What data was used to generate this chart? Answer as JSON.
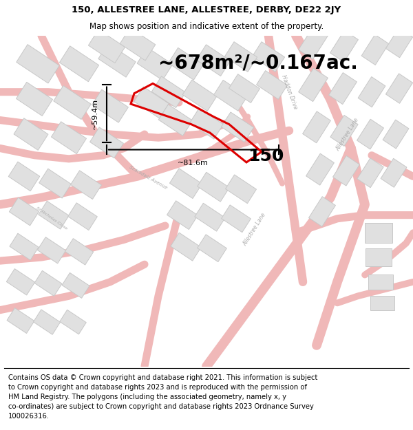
{
  "title_line1": "150, ALLESTREE LANE, ALLESTREE, DERBY, DE22 2JY",
  "title_line2": "Map shows position and indicative extent of the property.",
  "area_text": "~678m²/~0.167ac.",
  "property_number": "150",
  "dim_horizontal": "~81.6m",
  "dim_vertical": "~59.4m",
  "footer_text": "Contains OS data © Crown copyright and database right 2021. This information is subject\nto Crown copyright and database rights 2023 and is reproduced with the permission of\nHM Land Registry. The polygons (including the associated geometry, namely x, y\nco-ordinates) are subject to Crown copyright and database rights 2023 Ordnance Survey\n100026316.",
  "bg_color": "#ffffff",
  "map_bg": "#ffffff",
  "road_color": "#f0b8b8",
  "building_fill": "#e0e0e0",
  "building_edge": "#c8c8c8",
  "property_edge": "#dd0000",
  "title_fontsize": 9.5,
  "subtitle_fontsize": 8.5,
  "area_fontsize": 20,
  "number_fontsize": 18,
  "dim_fontsize": 8,
  "footer_fontsize": 7.2
}
